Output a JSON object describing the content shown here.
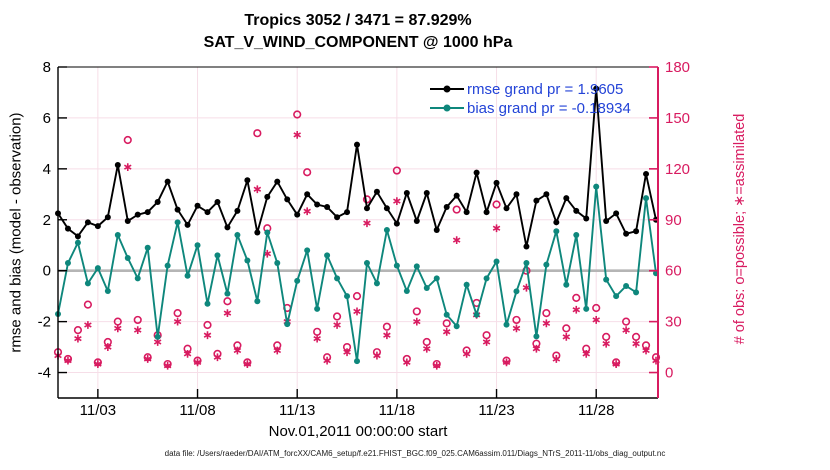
{
  "title": {
    "line1": "Tropics 3052 / 3471 = 87.929%",
    "line2": "SAT_V_WIND_COMPONENT @ 1000 hPa"
  },
  "legend": {
    "text_color": "#2343d7",
    "items": [
      {
        "id": "rmse",
        "label": "rmse grand pr = 1.9605",
        "color": "#000000"
      },
      {
        "id": "bias",
        "label": "bias grand pr = -0.18934",
        "color": "#0e877c"
      }
    ]
  },
  "axes": {
    "left": {
      "label": "rmse and bias (model - observation)",
      "ticks": [
        8,
        6,
        4,
        2,
        0,
        -2,
        -4
      ],
      "range": [
        -5,
        8
      ],
      "color": "#000000"
    },
    "right": {
      "label": "# of obs: o=possible; ∗=assimilated",
      "ticks": [
        180,
        150,
        120,
        90,
        60,
        30,
        0
      ],
      "range": [
        -15,
        180
      ],
      "color": "#d81b60"
    },
    "x": {
      "label": "Nov.01,2011 00:00:00 start",
      "range_days": [
        0,
        30.1
      ],
      "ticks": [
        {
          "label": "11/03",
          "day": 2
        },
        {
          "label": "11/08",
          "day": 7
        },
        {
          "label": "11/13",
          "day": 12
        },
        {
          "label": "11/18",
          "day": 17
        },
        {
          "label": "11/23",
          "day": 22
        },
        {
          "label": "11/28",
          "day": 27
        }
      ]
    }
  },
  "footer": "data file: /Users/raeder/DAI/ATM_forcXX/CAM6_setup/f.e21.FHIST_BGC.f09_025.CAM6assim.011/Diags_NTrS_2011-11/obs_diag_output.nc",
  "chart_data": {
    "type": "line",
    "title": "Tropics 3052 / 3471 = 87.929%  SAT_V_WIND_COMPONENT @ 1000 hPa",
    "x_start": "2011-11-01 00:00:00",
    "bin_hours": 12,
    "grid_on": true,
    "grid_color": "#f6dee8",
    "zero_line": {
      "axis": "left",
      "value": 0,
      "color": "#b5b5b5"
    },
    "legend_position": "top-right-inside",
    "series": [
      {
        "name": "rmse",
        "axis": "left",
        "marker": "filled-circle",
        "color": "#000000",
        "values": [
          2.25,
          1.65,
          1.35,
          1.9,
          1.75,
          2.1,
          4.15,
          1.95,
          2.2,
          2.3,
          2.7,
          3.5,
          2.4,
          1.8,
          2.55,
          2.3,
          2.7,
          1.7,
          2.35,
          3.55,
          1.5,
          2.9,
          3.5,
          2.8,
          2.2,
          3.0,
          2.6,
          2.5,
          2.1,
          2.3,
          4.95,
          2.45,
          3.1,
          2.45,
          1.85,
          3.05,
          1.95,
          3.05,
          1.6,
          2.5,
          2.95,
          2.3,
          3.85,
          2.3,
          3.45,
          2.45,
          3.0,
          0.95,
          2.75,
          3.0,
          1.9,
          2.85,
          2.35,
          2.05,
          7.15,
          1.95,
          2.25,
          1.45,
          1.55,
          3.8,
          2.0
        ]
      },
      {
        "name": "bias",
        "axis": "left",
        "marker": "filled-circle",
        "color": "#0e877c",
        "values": [
          -1.7,
          0.3,
          1.1,
          -0.5,
          0.1,
          -0.8,
          1.4,
          0.5,
          -0.3,
          0.9,
          -2.6,
          0.2,
          1.9,
          -0.2,
          1.0,
          -1.3,
          0.6,
          -0.9,
          1.4,
          0.4,
          -1.2,
          1.5,
          0.3,
          -2.1,
          -0.4,
          0.8,
          -1.5,
          0.6,
          -0.3,
          -1.0,
          -3.55,
          0.3,
          -0.5,
          1.6,
          0.2,
          -0.8,
          0.17,
          -0.68,
          -0.3,
          -1.73,
          -2.18,
          -0.55,
          -1.73,
          -0.3,
          0.36,
          -2.12,
          -0.81,
          0.3,
          -2.58,
          0.24,
          1.55,
          -0.55,
          1.4,
          -1.5,
          3.3,
          -0.35,
          -1.0,
          -0.6,
          -0.85,
          2.85,
          -0.1
        ]
      },
      {
        "name": "possible",
        "axis": "right",
        "marker": "open-circle",
        "color": "#d81b60",
        "values": [
          12,
          8,
          25,
          40,
          6,
          18,
          30,
          137,
          31,
          9,
          22,
          5,
          35,
          14,
          7,
          28,
          11,
          42,
          16,
          6,
          141,
          85,
          16,
          38,
          152,
          118,
          24,
          9,
          33,
          15,
          45,
          102,
          12,
          27,
          119,
          8,
          36,
          18,
          5,
          29,
          96,
          13,
          41,
          22,
          99,
          7,
          31,
          60,
          17,
          35,
          10,
          26,
          44,
          14,
          38,
          21,
          6,
          30,
          21,
          16,
          9
        ]
      },
      {
        "name": "assimilated",
        "axis": "right",
        "marker": "asterisk",
        "color": "#d81b60",
        "values": [
          10,
          7,
          20,
          28,
          5,
          15,
          26,
          121,
          25,
          8,
          18,
          4,
          30,
          11,
          6,
          22,
          9,
          35,
          13,
          5,
          108,
          70,
          13,
          30,
          140,
          95,
          20,
          7,
          28,
          12,
          36,
          88,
          10,
          22,
          101,
          6,
          30,
          14,
          4,
          24,
          78,
          11,
          34,
          18,
          85,
          6,
          26,
          50,
          14,
          29,
          8,
          21,
          37,
          11,
          31,
          17,
          5,
          25,
          17,
          13,
          7
        ]
      }
    ]
  }
}
